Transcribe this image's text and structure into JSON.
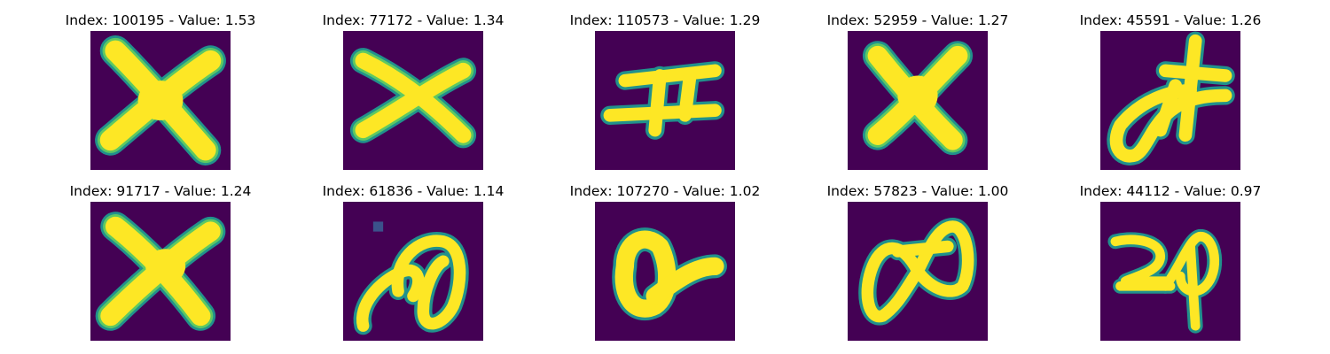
{
  "colors": {
    "background": "#440154",
    "stroke": "#fde725",
    "edge1": "#5ec962",
    "edge2": "#21918c",
    "edge3": "#3b528b"
  },
  "samples": [
    {
      "title": "Index: 100195 - Value: 1.53",
      "glyph": "X"
    },
    {
      "title": "Index: 77172 - Value: 1.34",
      "glyph": "X"
    },
    {
      "title": "Index: 110573 - Value: 1.29",
      "glyph": "double-bar-cross"
    },
    {
      "title": "Index: 52959 - Value: 1.27",
      "glyph": "X"
    },
    {
      "title": "Index: 45591 - Value: 1.26",
      "glyph": "loop-with-cross"
    },
    {
      "title": "Index: 91717 - Value: 1.24",
      "glyph": "X"
    },
    {
      "title": "Index: 61836 - Value: 1.14",
      "glyph": "loop-scribble"
    },
    {
      "title": "Index: 107270 - Value: 1.02",
      "glyph": "loop-with-tail"
    },
    {
      "title": "Index: 57823 - Value: 1.00",
      "glyph": "figure-eight"
    },
    {
      "title": "Index: 44112 - Value: 0.97",
      "glyph": "loop-with-stem"
    }
  ]
}
